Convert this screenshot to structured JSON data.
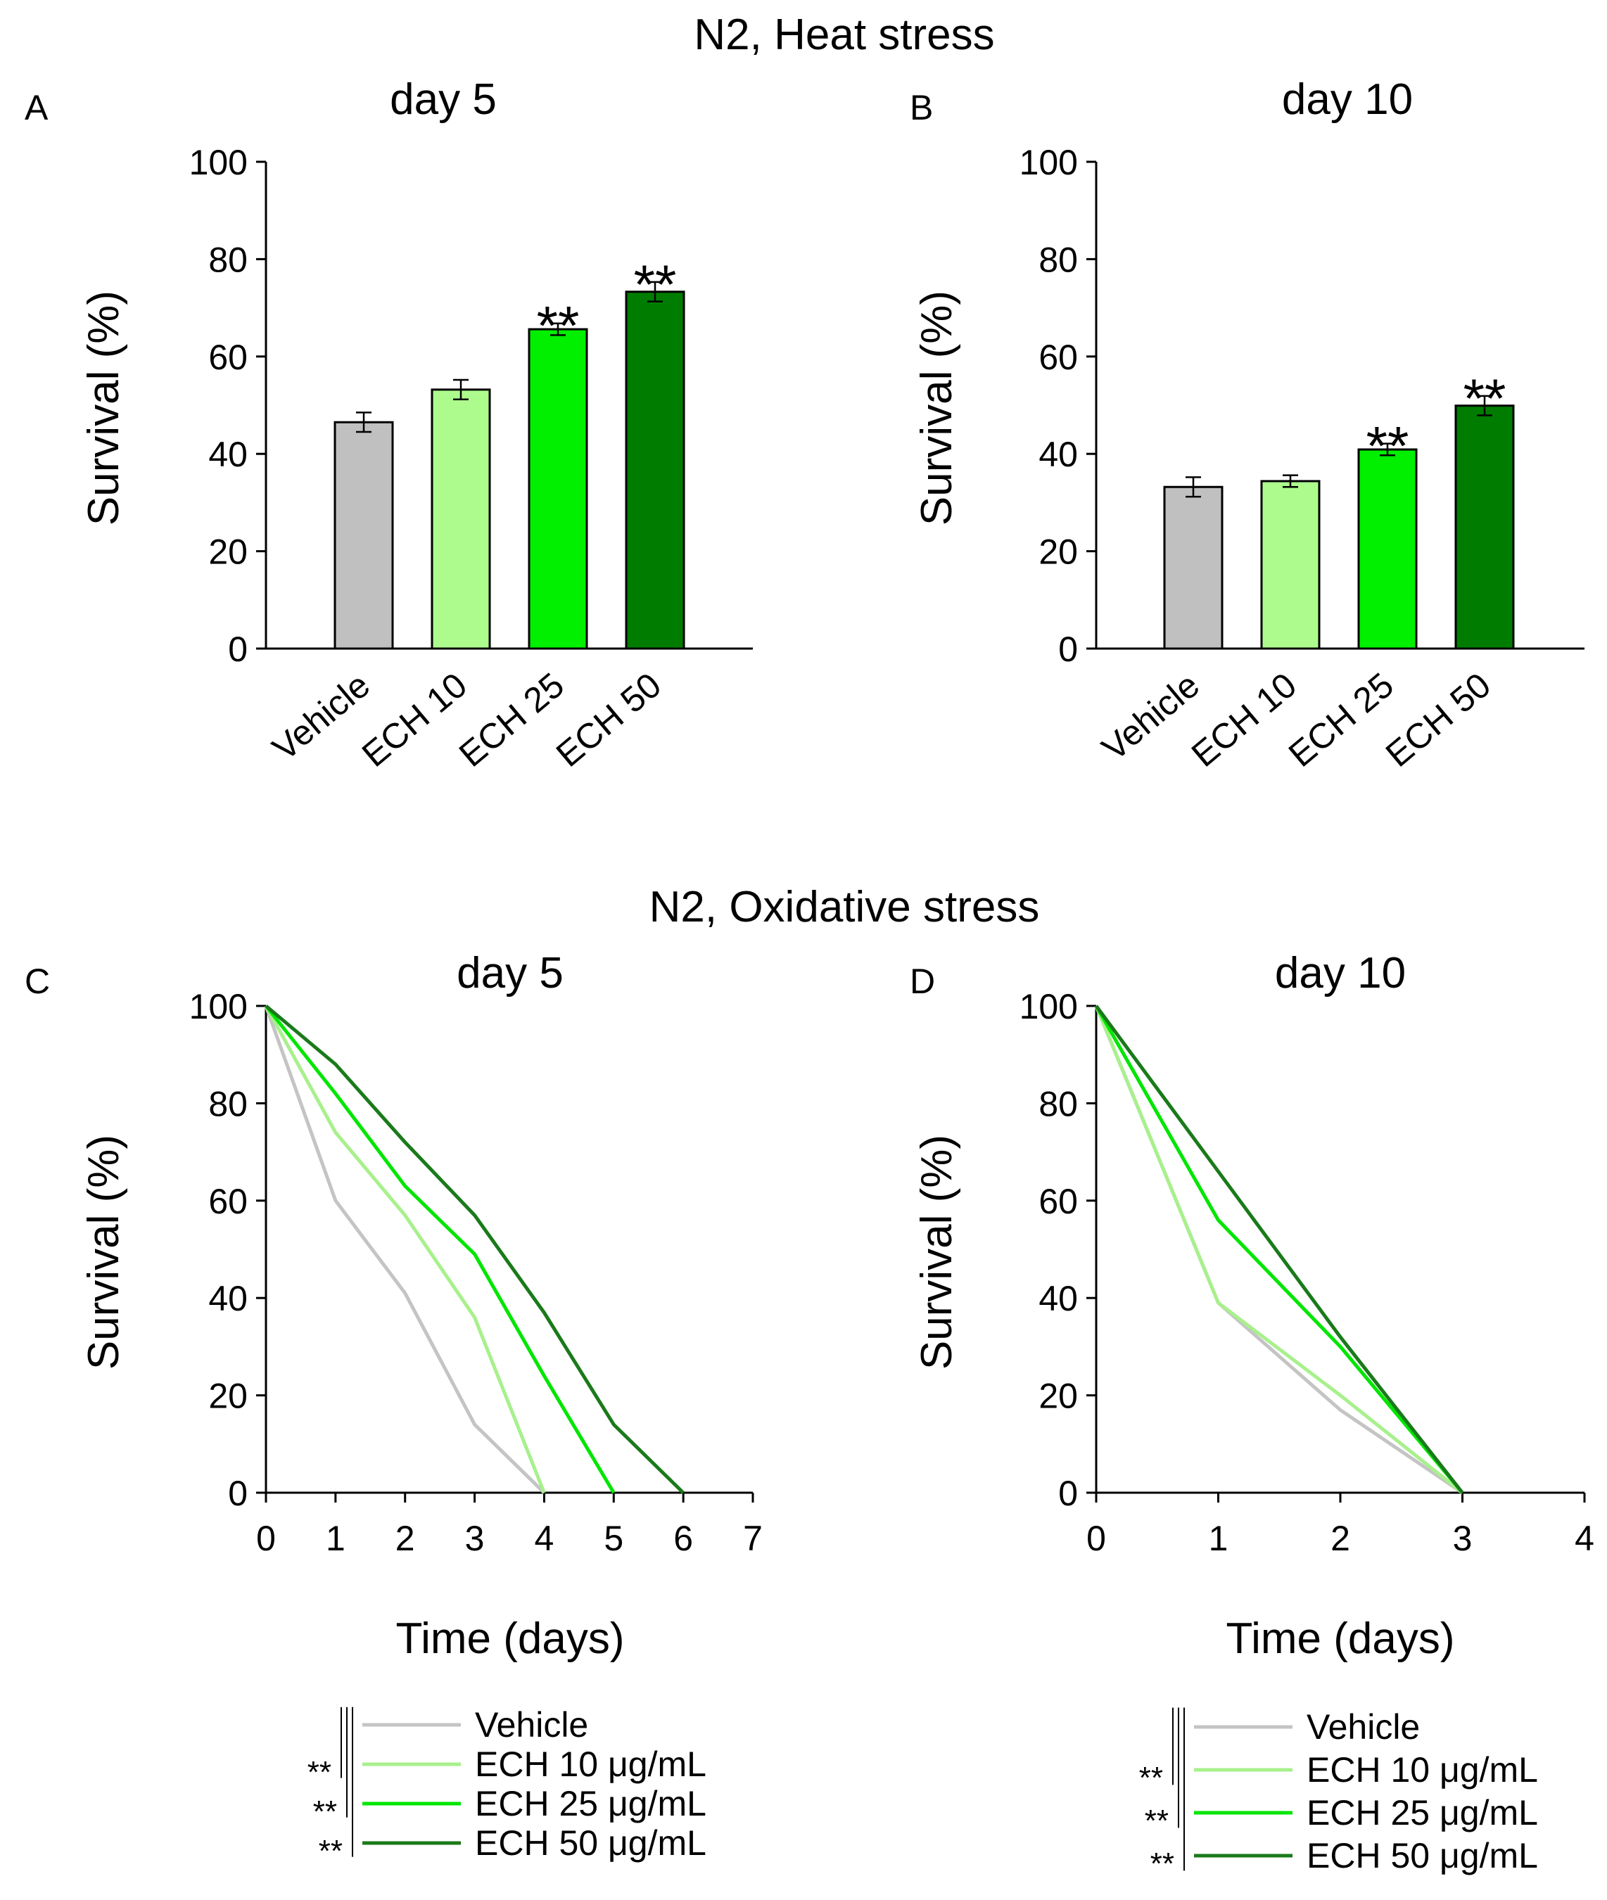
{
  "sections": [
    {
      "title": "N2, Heat stress"
    },
    {
      "title": "N2, Oxidative stress"
    }
  ],
  "colors": {
    "vehicle": "#c0c0c0",
    "ech10": "#adfb8d",
    "ech25": "#00f000",
    "ech50": "#007d00",
    "line_vehicle": "#c4c4c4",
    "line_ech10": "#a8f08c",
    "line_ech25": "#00e600",
    "line_ech50": "#1a7a1a"
  },
  "chart_data": [
    {
      "type": "bar",
      "panel": "A",
      "title": "day 5",
      "ylabel": "Survival (%)",
      "xlabel": "",
      "ylim": [
        0,
        100
      ],
      "yticks": [
        0,
        20,
        40,
        60,
        80,
        100
      ],
      "categories": [
        "Vehicle",
        "ECH 10",
        "ECH 25",
        "ECH 50"
      ],
      "values": [
        46.5,
        53.2,
        65.6,
        73.3
      ],
      "errors": [
        2.0,
        2.0,
        1.2,
        2.0
      ],
      "significance": [
        "",
        "",
        "**",
        "**"
      ],
      "colors": [
        "vehicle",
        "ech10",
        "ech25",
        "ech50"
      ]
    },
    {
      "type": "bar",
      "panel": "B",
      "title": "day 10",
      "ylabel": "Survival (%)",
      "xlabel": "",
      "ylim": [
        0,
        100
      ],
      "yticks": [
        0,
        20,
        40,
        60,
        80,
        100
      ],
      "categories": [
        "Vehicle",
        "ECH 10",
        "ECH 25",
        "ECH 50"
      ],
      "values": [
        33.2,
        34.4,
        40.9,
        49.9
      ],
      "errors": [
        2.0,
        1.2,
        1.2,
        2.0
      ],
      "significance": [
        "",
        "",
        "**",
        "**"
      ],
      "colors": [
        "vehicle",
        "ech10",
        "ech25",
        "ech50"
      ]
    },
    {
      "type": "line",
      "panel": "C",
      "title": "day 5",
      "xlabel": "Time (days)",
      "ylabel": "Survival (%)",
      "xlim": [
        0,
        7
      ],
      "ylim": [
        0,
        100
      ],
      "xticks": [
        0,
        1,
        2,
        3,
        4,
        5,
        6,
        7
      ],
      "yticks": [
        0,
        20,
        40,
        60,
        80,
        100
      ],
      "series": [
        {
          "name": "Vehicle",
          "color": "line_vehicle",
          "x": [
            0,
            1,
            2,
            3,
            4
          ],
          "values": [
            100,
            60,
            41,
            14,
            0
          ]
        },
        {
          "name": "ECH 10 μg/mL",
          "color": "line_ech10",
          "x": [
            0,
            1,
            2,
            3,
            4
          ],
          "values": [
            100,
            74,
            57,
            36,
            0
          ]
        },
        {
          "name": "ECH 25 μg/mL",
          "color": "line_ech25",
          "x": [
            0,
            1,
            2,
            3,
            4,
            5
          ],
          "values": [
            100,
            82,
            63,
            49,
            24,
            0
          ]
        },
        {
          "name": "ECH 50 μg/mL",
          "color": "line_ech50",
          "x": [
            0,
            1,
            2,
            3,
            4,
            5,
            6
          ],
          "values": [
            100,
            88,
            72,
            57,
            37,
            14,
            0
          ]
        }
      ],
      "legend_significance": [
        "**",
        "**",
        "**"
      ]
    },
    {
      "type": "line",
      "panel": "D",
      "title": "day 10",
      "xlabel": "Time (days)",
      "ylabel": "Survival (%)",
      "xlim": [
        0,
        4
      ],
      "ylim": [
        0,
        100
      ],
      "xticks": [
        0,
        1,
        2,
        3,
        4
      ],
      "yticks": [
        0,
        20,
        40,
        60,
        80,
        100
      ],
      "series": [
        {
          "name": "Vehicle",
          "color": "line_vehicle",
          "x": [
            0,
            1,
            2,
            3
          ],
          "values": [
            100,
            39,
            17,
            0
          ]
        },
        {
          "name": "ECH 10 μg/mL",
          "color": "line_ech10",
          "x": [
            0,
            1,
            2,
            3
          ],
          "values": [
            100,
            39,
            20,
            0
          ]
        },
        {
          "name": "ECH 25 μg/mL",
          "color": "line_ech25",
          "x": [
            0,
            1,
            2,
            3
          ],
          "values": [
            100,
            56,
            30,
            0
          ]
        },
        {
          "name": "ECH 50 μg/mL",
          "color": "line_ech50",
          "x": [
            0,
            1,
            2,
            3
          ],
          "values": [
            100,
            66,
            32,
            0
          ]
        }
      ],
      "legend_significance": [
        "**",
        "**",
        "**"
      ]
    }
  ]
}
